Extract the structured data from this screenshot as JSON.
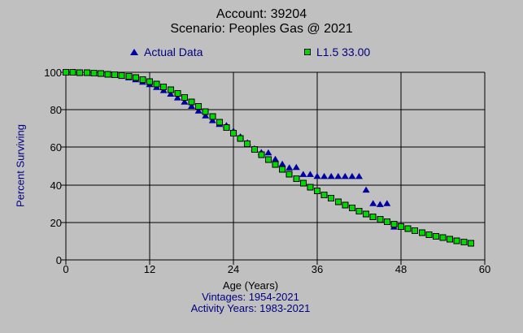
{
  "colors": {
    "background": "#c0c0c0",
    "grid": "#000000",
    "axis": "#000000",
    "tick_text": "#000000",
    "title_text": "#000000",
    "accent_text": "#000080",
    "actual_marker": "#0000a0",
    "fitted_marker": "#00d900"
  },
  "chart_data": {
    "type": "scatter",
    "title": "Account: 39204",
    "subtitle": "Scenario: Peoples Gas @ 2021",
    "xlabel": "Age (Years)",
    "ylabel": "Percent Surviving",
    "footnotes": [
      "Vintages: 1954-2021",
      "Activity Years: 1983-2021"
    ],
    "xlim": [
      0,
      60
    ],
    "ylim": [
      0,
      100
    ],
    "x_ticks": [
      0,
      12,
      24,
      36,
      48,
      60
    ],
    "y_ticks": [
      0,
      20,
      40,
      60,
      80,
      100
    ],
    "grid": true,
    "legend_position": "top",
    "series": [
      {
        "name": "Actual Data",
        "marker": "triangle",
        "color": "#0000a0",
        "x": [
          0,
          1,
          2,
          3,
          4,
          5,
          6,
          7,
          8,
          9,
          10,
          11,
          12,
          13,
          14,
          15,
          16,
          17,
          18,
          19,
          20,
          21,
          22,
          23,
          24,
          25,
          26,
          27,
          28,
          29,
          30,
          31,
          32,
          33,
          34,
          35,
          36,
          37,
          38,
          39,
          40,
          41,
          42,
          43,
          44,
          45,
          46,
          47
        ],
        "y": [
          100,
          99.9,
          99.8,
          99.7,
          99.5,
          99.2,
          98.9,
          98.4,
          97.8,
          97.0,
          96.0,
          94.7,
          93.4,
          91.9,
          90.2,
          88.3,
          86.3,
          84.1,
          81.8,
          79.3,
          76.7,
          74.2,
          72.2,
          71.6,
          68.6,
          65.6,
          62.4,
          59.2,
          57.2,
          57.0,
          53.6,
          51.0,
          49.0,
          49.2,
          45.5,
          45.5,
          44.5,
          44.4,
          44.4,
          44.4,
          44.4,
          44.4,
          44.4,
          37.2,
          30.0,
          29.5,
          30.0,
          17.5
        ]
      },
      {
        "name": "L1.5 33.00",
        "marker": "square",
        "color": "#00d900",
        "x": [
          0,
          1,
          2,
          3,
          4,
          5,
          6,
          7,
          8,
          9,
          10,
          11,
          12,
          13,
          14,
          15,
          16,
          17,
          18,
          19,
          20,
          21,
          22,
          23,
          24,
          25,
          26,
          27,
          28,
          29,
          30,
          31,
          32,
          33,
          34,
          35,
          36,
          37,
          38,
          39,
          40,
          41,
          42,
          43,
          44,
          45,
          46,
          47,
          48,
          49,
          50,
          51,
          52,
          53,
          54,
          55,
          56,
          57,
          58
        ],
        "y": [
          100,
          99.9,
          99.8,
          99.7,
          99.5,
          99.3,
          99.0,
          98.7,
          98.3,
          97.8,
          97.1,
          96.2,
          95.1,
          93.8,
          92.3,
          90.6,
          88.7,
          86.6,
          84.3,
          81.8,
          79.1,
          76.3,
          73.4,
          70.5,
          67.6,
          64.7,
          61.8,
          58.9,
          56.1,
          53.4,
          50.8,
          48.2,
          45.7,
          43.3,
          41.0,
          38.8,
          36.7,
          34.7,
          32.8,
          31.0,
          29.3,
          27.6,
          26.0,
          24.5,
          23.0,
          21.6,
          20.3,
          19.0,
          17.8,
          16.6,
          15.5,
          14.5,
          13.5,
          12.6,
          11.8,
          11.0,
          10.2,
          9.5,
          8.8
        ]
      }
    ]
  }
}
